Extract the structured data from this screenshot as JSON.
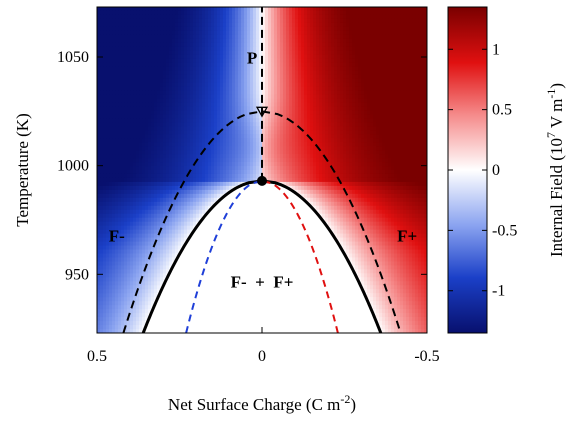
{
  "chart_data": {
    "type": "heatmap",
    "xlabel": "Net Surface Charge (C m",
    "xlabel_sup": "-2",
    "xlabel_suffix": ")",
    "ylabel": "Temperature (K)",
    "xlim": [
      0.5,
      -0.5
    ],
    "ylim": [
      923,
      1073
    ],
    "x_ticks": [
      {
        "value": 0.5,
        "label": "0.5"
      },
      {
        "value": 0.0,
        "label": "0"
      },
      {
        "value": -0.5,
        "label": "-0.5"
      }
    ],
    "y_ticks": [
      {
        "value": 950,
        "label": "950"
      },
      {
        "value": 1000,
        "label": "1000"
      },
      {
        "value": 1050,
        "label": "1050"
      }
    ],
    "colorbar": {
      "label_prefix": "Internal Field (10",
      "label_sup1": "7",
      "label_mid": " V m",
      "label_sup2": "-1",
      "label_suffix": ")",
      "range": [
        -1.35,
        1.35
      ],
      "ticks": [
        {
          "value": 1,
          "label": "1"
        },
        {
          "value": 0.5,
          "label": "0.5"
        },
        {
          "value": 0,
          "label": "0"
        },
        {
          "value": -0.5,
          "label": "-0.5"
        },
        {
          "value": -1,
          "label": "-1"
        }
      ],
      "colormap": [
        "#08106e",
        "#1b40c8",
        "#8aa3f0",
        "#ffffff",
        "#f58a8a",
        "#e01010",
        "#7a0000"
      ]
    },
    "phase_boundaries": {
      "critical_point": {
        "x": 0.0,
        "y": 993
      },
      "tricritical_marker": {
        "x": 0.0,
        "y": 1025
      },
      "solid_black": {
        "x_at_bottom": [
          0.36,
          -0.36
        ],
        "y_bottom": 923,
        "y_top": 993
      },
      "dashed_black_outer": {
        "x_at_bottom": [
          0.42,
          -0.42
        ],
        "y_bottom": 923,
        "y_top": 1025
      },
      "dashed_black_vertical": {
        "x": 0.0,
        "y_range": [
          993,
          1073
        ]
      },
      "dashed_blue": {
        "x_at_bottom": 0.23,
        "y_bottom": 923,
        "y_top": 993
      },
      "dashed_red": {
        "x_at_bottom": -0.23,
        "y_bottom": 923,
        "y_top": 993
      }
    },
    "region_labels": {
      "paraelectric": "P",
      "ferro_minus": "F-",
      "ferro_plus": "F+",
      "coexistence": "F-  +  F+"
    }
  }
}
